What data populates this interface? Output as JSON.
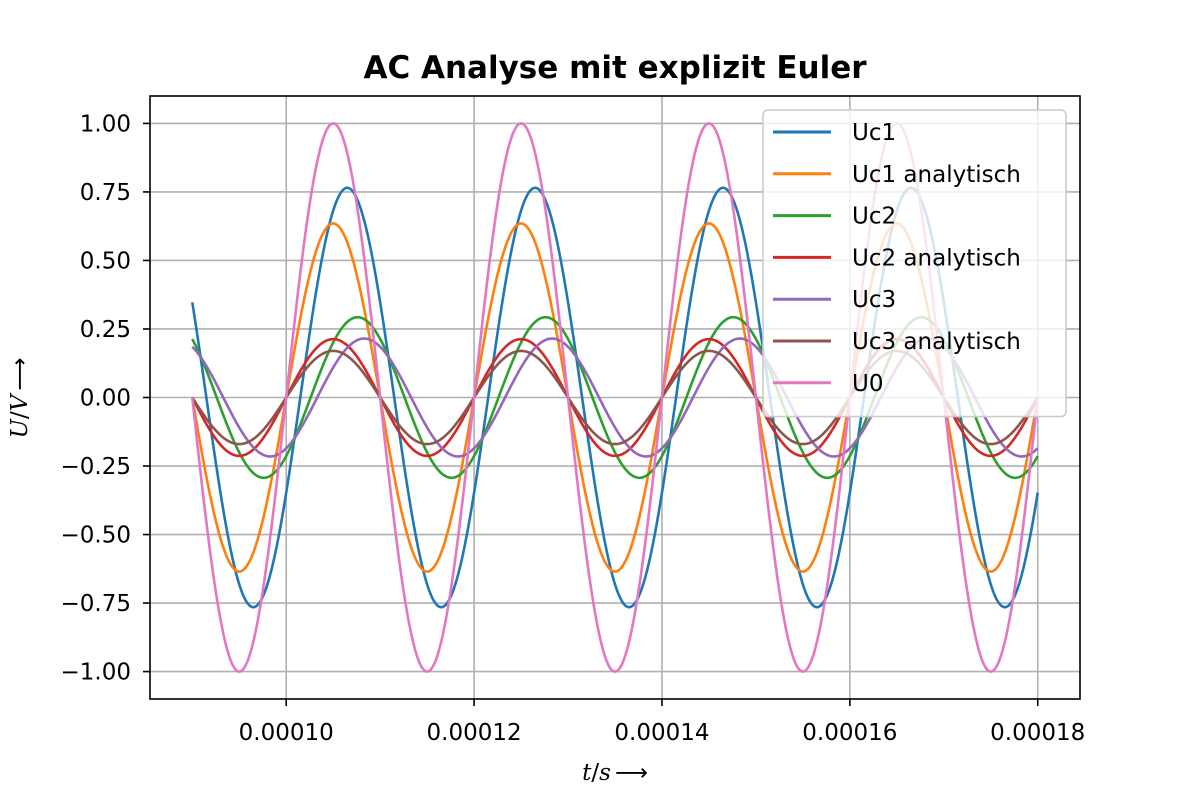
{
  "chart_data": {
    "type": "line",
    "title": "AC Analyse mit explizit Euler",
    "xlabel": {
      "symbol": "t",
      "unit": "s",
      "arrow": "⟶"
    },
    "ylabel": {
      "symbol": "U",
      "unit": "V",
      "arrow": "⟶"
    },
    "xlim": [
      8.55e-05,
      0.0001845
    ],
    "ylim": [
      -1.1,
      1.1
    ],
    "x_range": [
      9e-05,
      0.00018
    ],
    "xticks": [
      0.0001,
      0.00012,
      0.00014,
      0.00016,
      0.00018
    ],
    "xtick_labels": [
      "0.00010",
      "0.00012",
      "0.00014",
      "0.00016",
      "0.00018"
    ],
    "yticks": [
      -1.0,
      -0.75,
      -0.5,
      -0.25,
      0.0,
      0.25,
      0.5,
      0.75,
      1.0
    ],
    "ytick_labels": [
      "−1.00",
      "−0.75",
      "−0.50",
      "−0.25",
      "0.00",
      "0.25",
      "0.50",
      "0.75",
      "1.00"
    ],
    "grid": true,
    "legend_position": "top-right",
    "signal_frequency_hz": 50000,
    "series": [
      {
        "name": "Uc1",
        "color": "#1f77b4",
        "amplitude": 0.765,
        "peak_time": 0.0001065
      },
      {
        "name": "Uc1 analytisch",
        "color": "#ff7f0e",
        "amplitude": 0.635,
        "peak_time": 0.000105
      },
      {
        "name": "Uc2",
        "color": "#2ca02c",
        "amplitude": 0.293,
        "peak_time": 0.0001076
      },
      {
        "name": "Uc2 analytisch",
        "color": "#d62728",
        "amplitude": 0.213,
        "peak_time": 0.000105
      },
      {
        "name": "Uc3",
        "color": "#9467bd",
        "amplitude": 0.215,
        "peak_time": 0.0001083
      },
      {
        "name": "Uc3 analytisch",
        "color": "#8c564b",
        "amplitude": 0.17,
        "peak_time": 0.000105
      },
      {
        "name": "U0",
        "color": "#e377c2",
        "amplitude": 1.0,
        "peak_time": 0.000105
      }
    ]
  }
}
